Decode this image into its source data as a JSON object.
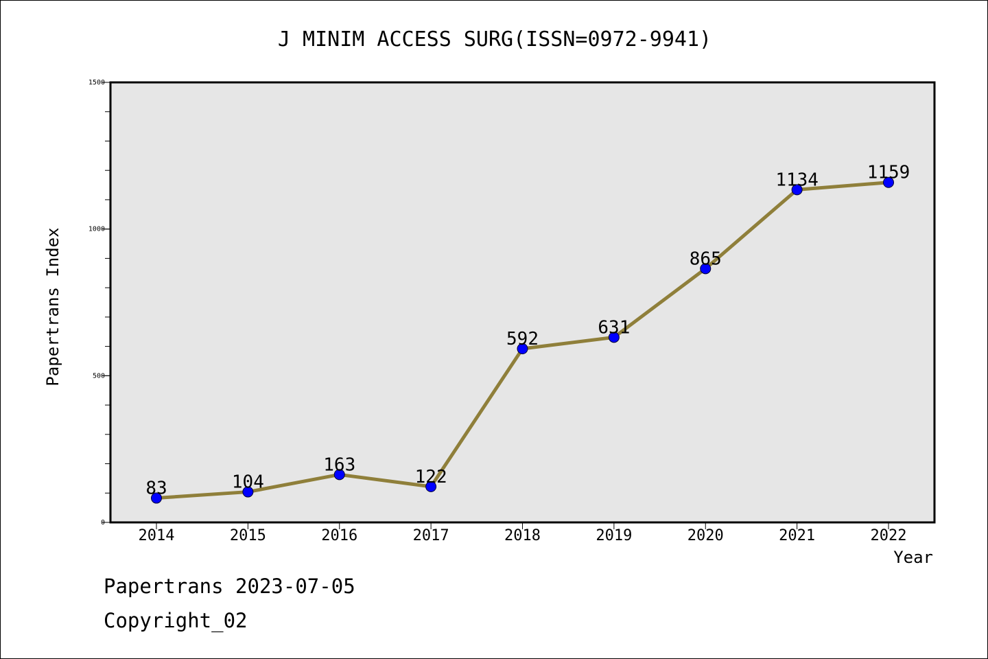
{
  "footer": {
    "date_line": "Papertrans 2023-07-05",
    "copyright": "Copyright_02"
  },
  "chart_data": {
    "type": "line",
    "title": "J MINIM ACCESS SURG(ISSN=0972-9941)",
    "xlabel": "Year",
    "ylabel": "Papertrans Index",
    "categories": [
      "2014",
      "2015",
      "2016",
      "2017",
      "2018",
      "2019",
      "2020",
      "2021",
      "2022"
    ],
    "series": [
      {
        "values": [
          83,
          104,
          163,
          122,
          592,
          631,
          865,
          1134,
          1159
        ]
      }
    ],
    "ylim": [
      0,
      1500
    ],
    "yticks": [
      0,
      500,
      1000,
      1500
    ],
    "data_labels": true,
    "grid": false,
    "colors": {
      "line": "#8f7f3a",
      "marker": "#0000ff",
      "plot_background": "#e6e6e6"
    }
  }
}
